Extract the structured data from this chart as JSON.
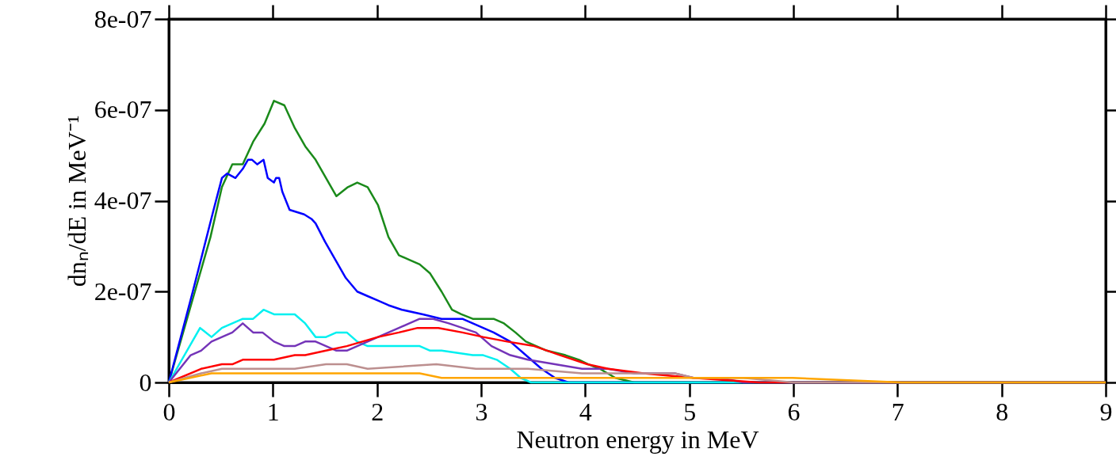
{
  "chart_data": {
    "type": "line",
    "xlabel": "Neutron energy in MeV",
    "ylabel": "dnₙ/dE in MeV⁻¹",
    "xlim": [
      0,
      9
    ],
    "xticks": [
      0,
      1,
      2,
      3,
      4,
      5,
      6,
      7,
      8,
      9
    ],
    "ylim": [
      0,
      8e-07
    ],
    "yticks": [
      {
        "value": 0,
        "label": "0"
      },
      {
        "value": 2e-07,
        "label": "2e-07"
      },
      {
        "value": 4e-07,
        "label": "4e-07"
      },
      {
        "value": 6e-07,
        "label": "6e-07"
      },
      {
        "value": 8e-07,
        "label": "8e-07"
      }
    ],
    "grid": false,
    "line_style": "solid",
    "marker": "none",
    "series": [
      {
        "color": "#1a8a1a",
        "x": [
          0,
          0.4,
          0.51,
          0.61,
          0.71,
          0.81,
          0.92,
          1.01,
          1.11,
          1.21,
          1.31,
          1.41,
          1.61,
          1.72,
          1.81,
          1.91,
          2.01,
          2.11,
          2.21,
          2.31,
          2.41,
          2.51,
          2.62,
          2.72,
          2.81,
          2.92,
          3.12,
          3.22,
          3.33,
          3.43,
          3.53,
          3.63,
          3.81,
          3.94,
          4.03,
          4.14,
          4.29,
          4.47,
          9
        ],
        "values": [
          0,
          3.2e-07,
          4.3e-07,
          4.8e-07,
          4.8e-07,
          5.3e-07,
          5.7e-07,
          6.2e-07,
          6.1e-07,
          5.6e-07,
          5.2e-07,
          4.9e-07,
          4.1e-07,
          4.3e-07,
          4.4e-07,
          4.3e-07,
          3.9e-07,
          3.2e-07,
          2.8e-07,
          2.7e-07,
          2.6e-07,
          2.4e-07,
          2e-07,
          1.6e-07,
          1.5e-07,
          1.4e-07,
          1.4e-07,
          1.3e-07,
          1.1e-07,
          9e-08,
          8e-08,
          7e-08,
          6e-08,
          5e-08,
          4e-08,
          3e-08,
          1e-08,
          0,
          0
        ]
      },
      {
        "color": "#0000ff",
        "x": [
          0,
          0.23,
          0.43,
          0.51,
          0.56,
          0.64,
          0.71,
          0.76,
          0.8,
          0.85,
          0.91,
          0.95,
          1.01,
          1.03,
          1.06,
          1.09,
          1.16,
          1.3,
          1.37,
          1.41,
          1.5,
          1.6,
          1.7,
          1.81,
          1.91,
          2.01,
          2.11,
          2.24,
          2.44,
          2.62,
          2.82,
          2.92,
          3.02,
          3.12,
          3.28,
          3.48,
          3.58,
          3.71,
          3.84,
          3.94,
          9
        ],
        "values": [
          0,
          2e-07,
          3.8e-07,
          4.5e-07,
          4.6e-07,
          4.5e-07,
          4.7e-07,
          4.9e-07,
          4.9e-07,
          4.8e-07,
          4.9e-07,
          4.5e-07,
          4.4e-07,
          4.5e-07,
          4.5e-07,
          4.2e-07,
          3.8e-07,
          3.7e-07,
          3.6e-07,
          3.5e-07,
          3.1e-07,
          2.7e-07,
          2.3e-07,
          2e-07,
          1.9e-07,
          1.8e-07,
          1.7e-07,
          1.6e-07,
          1.5e-07,
          1.4e-07,
          1.4e-07,
          1.3e-07,
          1.2e-07,
          1.1e-07,
          9e-08,
          5e-08,
          3e-08,
          1e-08,
          0,
          0,
          0
        ]
      },
      {
        "color": "#00f0f0",
        "x": [
          0,
          0.3,
          0.41,
          0.51,
          0.61,
          0.71,
          0.81,
          0.91,
          1.01,
          1.11,
          1.21,
          1.31,
          1.41,
          1.51,
          1.61,
          1.71,
          1.81,
          1.91,
          2.01,
          2.21,
          2.31,
          2.41,
          2.51,
          2.62,
          2.92,
          3.02,
          3.15,
          3.28,
          3.38,
          3.48,
          3.61,
          9
        ],
        "values": [
          0,
          1.2e-07,
          1e-07,
          1.2e-07,
          1.3e-07,
          1.4e-07,
          1.4e-07,
          1.6e-07,
          1.5e-07,
          1.5e-07,
          1.5e-07,
          1.3e-07,
          1e-07,
          1e-07,
          1.1e-07,
          1.1e-07,
          9e-08,
          8e-08,
          8e-08,
          8e-08,
          8e-08,
          8e-08,
          7e-08,
          7e-08,
          6e-08,
          6e-08,
          5e-08,
          3e-08,
          1e-08,
          0,
          0,
          0
        ]
      },
      {
        "color": "#7434b8",
        "x": [
          0,
          0.21,
          0.31,
          0.41,
          0.51,
          0.61,
          0.71,
          0.81,
          0.9,
          1.01,
          1.11,
          1.21,
          1.31,
          1.41,
          1.51,
          1.61,
          1.71,
          1.81,
          2.01,
          2.21,
          2.31,
          2.41,
          2.54,
          2.69,
          2.82,
          2.95,
          3.1,
          3.28,
          3.45,
          3.71,
          3.97,
          4.22,
          4.47,
          4.86,
          5.04,
          5.29,
          5.52,
          6,
          9
        ],
        "values": [
          0,
          6e-08,
          7e-08,
          9e-08,
          1e-07,
          1.1e-07,
          1.3e-07,
          1.1e-07,
          1.1e-07,
          9e-08,
          8e-08,
          8e-08,
          9e-08,
          9e-08,
          8e-08,
          7e-08,
          7e-08,
          8e-08,
          1e-07,
          1.2e-07,
          1.3e-07,
          1.4e-07,
          1.4e-07,
          1.3e-07,
          1.2e-07,
          1.1e-07,
          8e-08,
          6e-08,
          5e-08,
          4e-08,
          3e-08,
          3e-08,
          2e-08,
          2e-08,
          1e-08,
          1e-08,
          0,
          0,
          0
        ]
      },
      {
        "color": "#ff0000",
        "x": [
          0,
          0.31,
          0.51,
          0.61,
          0.71,
          0.81,
          1.01,
          1.21,
          1.31,
          1.51,
          1.71,
          2.01,
          2.21,
          2.39,
          2.59,
          2.82,
          3.02,
          3.25,
          3.51,
          3.76,
          4.02,
          4.22,
          4.56,
          5.04,
          5.67,
          6.1,
          9
        ],
        "values": [
          0,
          3e-08,
          4e-08,
          4e-08,
          5e-08,
          5e-08,
          5e-08,
          6e-08,
          6e-08,
          7e-08,
          8e-08,
          1e-07,
          1.1e-07,
          1.2e-07,
          1.2e-07,
          1.1e-07,
          1e-07,
          9e-08,
          8e-08,
          6e-08,
          4e-08,
          3e-08,
          2e-08,
          1e-08,
          0,
          0,
          0
        ]
      },
      {
        "color": "#bc8f8f",
        "x": [
          0,
          0.31,
          0.51,
          0.71,
          1.01,
          1.21,
          1.51,
          1.71,
          1.91,
          2.57,
          2.95,
          3.45,
          3.97,
          4.47,
          4.86,
          5.04,
          5.52,
          6,
          9
        ],
        "values": [
          0,
          2e-08,
          3e-08,
          3e-08,
          3e-08,
          3e-08,
          4e-08,
          4e-08,
          3e-08,
          4e-08,
          3e-08,
          3e-08,
          2e-08,
          2e-08,
          2e-08,
          1e-08,
          1e-08,
          0,
          0
        ]
      },
      {
        "color": "#ffa500",
        "x": [
          0,
          0.41,
          0.51,
          0.61,
          0.91,
          1.11,
          1.51,
          2.01,
          2.41,
          2.62,
          3.02,
          3.45,
          4.02,
          4.86,
          5.04,
          5.99,
          7.04,
          8.06,
          9
        ],
        "values": [
          0,
          2e-08,
          2e-08,
          2e-08,
          2e-08,
          2e-08,
          2e-08,
          2e-08,
          2e-08,
          1e-08,
          1e-08,
          1e-08,
          1e-08,
          1e-08,
          1e-08,
          1e-08,
          0,
          0,
          0
        ]
      }
    ]
  }
}
